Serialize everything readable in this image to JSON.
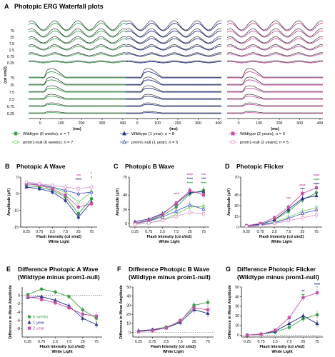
{
  "figure": {
    "panel_a": {
      "letter": "A",
      "title": "Photopic ERG Waterfall plots",
      "ylabel": "(cd s/m2)",
      "xlabel": "(ms)",
      "x_ticks": [
        "0",
        "100",
        "200",
        "300",
        "400"
      ],
      "flicker_levels": [
        "75",
        "25",
        "7.5",
        "2.5",
        "0.75",
        "0.25"
      ],
      "flash_levels": [
        "75",
        "25",
        "7.5",
        "2.5",
        "0.75",
        "0.25"
      ],
      "columns": [
        {
          "key": "wt6w",
          "color": "#3aa14a",
          "marker": "circle"
        },
        {
          "key": "wt1y",
          "color": "#24318f",
          "marker": "triangle"
        },
        {
          "key": "wt2y",
          "color": "#c94fa5",
          "marker": "square"
        }
      ],
      "legend": [
        {
          "label": "Wildtype (6 weeks); n = 7",
          "color": "#3aa14a",
          "marker": "circle",
          "filled": true
        },
        {
          "label": "prom1-null (6 weeks); n = 7",
          "color": "#6cd35b",
          "marker": "circle",
          "filled": false
        },
        {
          "label": "Wildtype (1 year); n = 8",
          "color": "#24318f",
          "marker": "triangle",
          "filled": true
        },
        {
          "label": "prom1-null (1 year); n = 5",
          "color": "#4655c9",
          "marker": "triangle",
          "filled": false
        },
        {
          "label": "Wildtype (2 years); n = 6",
          "color": "#c94fa5",
          "marker": "square",
          "filled": true
        },
        {
          "label": "prom1-null (2 years); n = 5",
          "color": "#e79ad0",
          "marker": "square",
          "filled": false
        }
      ]
    }
  },
  "chart_data": [
    {
      "panel": "B",
      "title": "Photopic A Wave",
      "type": "line",
      "ylabel": "Amplitude (μV)",
      "xlabel": "Flash Intensity (cd s/m2)",
      "xlabel2": "White Light",
      "categories": [
        "0.25",
        "0.75",
        "2.5",
        "7.5",
        "25",
        "75"
      ],
      "ylim": [
        -15,
        0
      ],
      "yticks": [
        0,
        -5,
        -10,
        -15
      ],
      "ytick_labels": [
        "0",
        "-5",
        "-10",
        "-15"
      ],
      "series": [
        {
          "values": [
            -2.5,
            -3.0,
            -4.0,
            -6.0,
            -11.0,
            -6.5
          ],
          "color": "#3aa14a",
          "marker": "circle",
          "filled": true
        },
        {
          "values": [
            -2.0,
            -2.5,
            -3.2,
            -4.5,
            -7.5,
            -4.5
          ],
          "color": "#6cd35b",
          "marker": "circle",
          "filled": false
        },
        {
          "values": [
            -3.0,
            -3.5,
            -4.5,
            -7.0,
            -12.0,
            -7.5
          ],
          "color": "#24318f",
          "marker": "triangle",
          "filled": true
        },
        {
          "values": [
            -2.0,
            -2.2,
            -3.0,
            -4.0,
            -5.0,
            -4.5
          ],
          "color": "#4655c9",
          "marker": "triangle",
          "filled": false
        },
        {
          "values": [
            -2.0,
            -2.5,
            -3.5,
            -5.5,
            -9.0,
            -8.0
          ],
          "color": "#c94fa5",
          "marker": "square",
          "filled": true
        },
        {
          "values": [
            -1.5,
            -2.0,
            -2.5,
            -3.0,
            -3.5,
            -3.0
          ],
          "color": "#e79ad0",
          "marker": "square",
          "filled": false
        }
      ],
      "annotations": [
        {
          "cat": 4,
          "y": 0.0,
          "text": "***",
          "color": "#c94fa5"
        },
        {
          "cat": 4,
          "y": -1.2,
          "text": "****",
          "color": "#24318f"
        },
        {
          "cat": 5,
          "y": 0.6,
          "text": "*",
          "color": "#c94fa5"
        },
        {
          "cat": 5,
          "y": -0.6,
          "text": "*",
          "color": "#3aa14a"
        }
      ]
    },
    {
      "panel": "C",
      "title": "Photopic B Wave",
      "type": "line",
      "ylabel": "Amplitude (μV)",
      "xlabel": "Flash Intensity (cd s/m2)",
      "xlabel2": "White Light",
      "categories": [
        "0.25",
        "0.75",
        "2.5",
        "7.5",
        "25",
        "75"
      ],
      "ylim": [
        0,
        75
      ],
      "yticks": [
        5,
        26,
        48,
        75
      ],
      "ytick_labels": [
        "5",
        "26",
        "48",
        "75"
      ],
      "series": [
        {
          "values": [
            5,
            9,
            17,
            30,
            50,
            55
          ],
          "color": "#3aa14a",
          "marker": "circle",
          "filled": true
        },
        {
          "values": [
            4,
            6,
            11,
            19,
            30,
            31
          ],
          "color": "#6cd35b",
          "marker": "circle",
          "filled": false
        },
        {
          "values": [
            8,
            12,
            20,
            35,
            52,
            53
          ],
          "color": "#24318f",
          "marker": "triangle",
          "filled": true
        },
        {
          "values": [
            6,
            9,
            15,
            24,
            33,
            27
          ],
          "color": "#4655c9",
          "marker": "triangle",
          "filled": false
        },
        {
          "values": [
            6,
            10,
            19,
            36,
            55,
            48
          ],
          "color": "#c94fa5",
          "marker": "square",
          "filled": true
        },
        {
          "values": [
            4,
            6,
            10,
            16,
            22,
            20
          ],
          "color": "#e79ad0",
          "marker": "square",
          "filled": false
        }
      ],
      "annotations": [
        {
          "cat": 3,
          "y": 47,
          "text": "****",
          "color": "#c94fa5"
        },
        {
          "cat": 4,
          "y": 76,
          "text": "****",
          "color": "#c94fa5"
        },
        {
          "cat": 4,
          "y": 70,
          "text": "****",
          "color": "#24318f"
        },
        {
          "cat": 4,
          "y": 64,
          "text": "****",
          "color": "#3aa14a"
        },
        {
          "cat": 5,
          "y": 76,
          "text": "***",
          "color": "#c94fa5"
        },
        {
          "cat": 5,
          "y": 70,
          "text": "***",
          "color": "#24318f"
        },
        {
          "cat": 5,
          "y": 64,
          "text": "****",
          "color": "#3aa14a"
        }
      ]
    },
    {
      "panel": "D",
      "title": "Photopic Flicker",
      "type": "line",
      "ylabel": "Amplitude (μV)",
      "xlabel": "Flash Intensity (cd s/m2)",
      "xlabel2": "White Light",
      "categories": [
        "0.25",
        "0.75",
        "2.5",
        "7.5",
        "25",
        "75"
      ],
      "ylim": [
        0,
        70
      ],
      "yticks": [
        0,
        15,
        30,
        45,
        70
      ],
      "ytick_labels": [
        "0",
        "15",
        "30",
        "45",
        "70"
      ],
      "series": [
        {
          "values": [
            2,
            4,
            10,
            22,
            38,
            48
          ],
          "color": "#3aa14a",
          "marker": "circle",
          "filled": true
        },
        {
          "values": [
            1,
            3,
            7,
            14,
            22,
            27
          ],
          "color": "#6cd35b",
          "marker": "circle",
          "filled": false
        },
        {
          "values": [
            2,
            4,
            10,
            25,
            40,
            44
          ],
          "color": "#24318f",
          "marker": "triangle",
          "filled": true
        },
        {
          "values": [
            1,
            3,
            6,
            12,
            19,
            24
          ],
          "color": "#4655c9",
          "marker": "triangle",
          "filled": false
        },
        {
          "values": [
            2,
            5,
            13,
            28,
            47,
            55
          ],
          "color": "#c94fa5",
          "marker": "square",
          "filled": true
        },
        {
          "values": [
            1,
            2,
            5,
            9,
            13,
            17
          ],
          "color": "#e79ad0",
          "marker": "square",
          "filled": false
        }
      ],
      "annotations": [
        {
          "cat": 3,
          "y": 38,
          "text": "***",
          "color": "#c94fa5"
        },
        {
          "cat": 4,
          "y": 56,
          "text": "****",
          "color": "#c94fa5"
        },
        {
          "cat": 4,
          "y": 51,
          "text": "***",
          "color": "#24318f"
        },
        {
          "cat": 5,
          "y": 70,
          "text": "****",
          "color": "#c94fa5"
        },
        {
          "cat": 5,
          "y": 64,
          "text": "****",
          "color": "#3aa14a"
        },
        {
          "cat": 5,
          "y": 58,
          "text": "****",
          "color": "#24318f"
        }
      ]
    },
    {
      "panel": "E",
      "title": "Difference Photopic A Wave",
      "subtitle": "(Wildtype minus prom1-null)",
      "type": "line",
      "ylabel": "Difference in Mean Amplitude",
      "xlabel": "Flash Intensity (cd s/m2)",
      "xlabel2": "White Light",
      "categories": [
        "0.25",
        "0.75",
        "2.5",
        "7.5",
        "25",
        "75"
      ],
      "ylim": [
        -10,
        2
      ],
      "yticks": [
        0,
        -2,
        -4,
        -6,
        -8
      ],
      "ytick_labels": [
        "0",
        "-2",
        "-4",
        "-6",
        "-8"
      ],
      "zero_line": true,
      "legend": [
        {
          "label": "6 weeks",
          "color": "#3aa14a",
          "marker": "circle"
        },
        {
          "label": "1 year",
          "color": "#24318f",
          "marker": "triangle"
        },
        {
          "label": "2 year",
          "color": "#c94fa5",
          "marker": "square"
        }
      ],
      "series": [
        {
          "values": [
            0.2,
            1.5,
            0.8,
            -0.3,
            -3.5,
            -5.5
          ],
          "color": "#3aa14a",
          "marker": "circle",
          "filled": true
        },
        {
          "values": [
            -0.5,
            -0.3,
            -1.2,
            -2.5,
            -5.5,
            -7.0
          ],
          "color": "#24318f",
          "marker": "triangle",
          "filled": true
        },
        {
          "values": [
            -0.3,
            -1.0,
            -1.8,
            -3.0,
            -4.5,
            -5.0
          ],
          "color": "#c94fa5",
          "marker": "square",
          "filled": true
        }
      ]
    },
    {
      "panel": "F",
      "title": "Difference Photopic B Wave",
      "subtitle": "(Wildtype minus prom1-null)",
      "type": "line",
      "ylabel": "Difference in Mean Amplitude",
      "xlabel": "Flash Intensity (cd s/m2)",
      "xlabel2": "White Light",
      "categories": [
        "0.25",
        "0.75",
        "2.5",
        "7.5",
        "25",
        "75"
      ],
      "ylim": [
        -5,
        50
      ],
      "yticks": [
        0,
        10,
        20,
        30,
        40,
        50
      ],
      "ytick_labels": [
        "0",
        "10",
        "20",
        "30",
        "40",
        "50"
      ],
      "zero_line": true,
      "series": [
        {
          "values": [
            1,
            3,
            6,
            12,
            30,
            33
          ],
          "color": "#3aa14a",
          "marker": "circle",
          "filled": true
        },
        {
          "values": [
            2,
            3,
            5,
            11,
            25,
            21
          ],
          "color": "#24318f",
          "marker": "triangle",
          "filled": true
        },
        {
          "values": [
            1,
            2,
            5,
            13,
            27,
            25
          ],
          "color": "#c94fa5",
          "marker": "square",
          "filled": true
        }
      ]
    },
    {
      "panel": "G",
      "title": "Difference Photopic Flicker",
      "subtitle": "(Wildtype minus prom1-null)",
      "type": "line",
      "ylabel": "Difference in Mean Amplitude",
      "xlabel": "Flash Intensity (cd s/m2)",
      "xlabel2": "White Light",
      "categories": [
        "0.25",
        "0.75",
        "2.5",
        "7.5",
        "25",
        "75"
      ],
      "ylim": [
        -2,
        50
      ],
      "yticks": [
        0,
        10,
        20,
        30,
        40,
        50
      ],
      "ytick_labels": [
        "0",
        "10",
        "20",
        "30",
        "40",
        "50"
      ],
      "zero_line": true,
      "series": [
        {
          "values": [
            0,
            1,
            3,
            8,
            17,
            21
          ],
          "color": "#3aa14a",
          "marker": "circle",
          "filled": true
        },
        {
          "values": [
            0,
            1,
            4,
            12,
            20,
            12
          ],
          "color": "#24318f",
          "marker": "triangle",
          "filled": true
        },
        {
          "values": [
            0,
            1,
            5,
            18,
            39,
            44
          ],
          "color": "#c94fa5",
          "marker": "square",
          "filled": true
        }
      ],
      "annotations": [
        {
          "cat": 4,
          "y": 44,
          "text": "**",
          "color": "#24318f"
        },
        {
          "cat": 4,
          "y": 40,
          "text": "**",
          "color": "#3aa14a"
        },
        {
          "cat": 5,
          "y": 51,
          "text": "****",
          "color": "#24318f"
        },
        {
          "cat": 5,
          "y": 48,
          "text": "*",
          "color": "#3aa14a"
        }
      ]
    }
  ]
}
